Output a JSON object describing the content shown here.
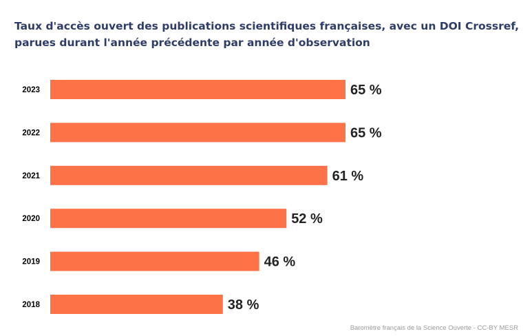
{
  "chart_data": {
    "type": "bar",
    "orientation": "horizontal",
    "title": "Taux d'accès ouvert des publications scientifiques françaises, avec un DOI Crossref, parues durant l'année précédente par année d'observation",
    "categories": [
      "2023",
      "2022",
      "2021",
      "2020",
      "2019",
      "2018"
    ],
    "values": [
      65,
      65,
      61,
      52,
      46,
      38
    ],
    "value_labels": [
      "65 %",
      "65 %",
      "61 %",
      "52 %",
      "46 %",
      "38 %"
    ],
    "xlim": [
      0,
      100
    ],
    "grid": false,
    "legend": "none",
    "bar_color": "#fe7247"
  },
  "credit": "Baromètre français de la Science Ouverte - CC-BY MESR"
}
